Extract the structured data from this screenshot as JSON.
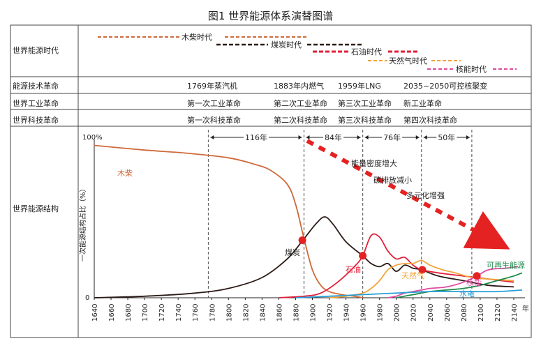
{
  "figure_title": "图1    世界能源体系演替图谱",
  "row_labels": {
    "era": "世界能源时代",
    "tech": "能源技术革命",
    "industry": "世界工业革命",
    "science": "世界科技革命",
    "structure": "世界能源结构"
  },
  "eras": [
    {
      "label": "木柴时代",
      "color": "#d0693a"
    },
    {
      "label": "煤炭时代",
      "color": "#2b1a16"
    },
    {
      "label": "石油时代",
      "color": "#e2203a"
    },
    {
      "label": "天然气时代",
      "color": "#f2a43a"
    },
    {
      "label": "核能时代",
      "color": "#e04aa0"
    }
  ],
  "tech_revolutions": [
    "1769年蒸汽机",
    "1883年内燃气",
    "1959年LNG",
    "2035~2050可控核聚变"
  ],
  "industrial_revolutions": [
    "第一次工业革命",
    "第二次工业革命",
    "第三次工业革命",
    "新工业革命"
  ],
  "sci_revolutions": [
    "第一次科技革命",
    "第二次科技革命",
    "第三次科技革命",
    "第四次科技革命"
  ],
  "chart_data": {
    "type": "line",
    "ylabel": "一次能源结构占比（%）",
    "y_tick_top": "100%",
    "y_tick_bottom": "0",
    "x_unit": "年",
    "x_ticks": [
      1640,
      1660,
      1680,
      1700,
      1720,
      1740,
      1760,
      1780,
      1800,
      1820,
      1840,
      1860,
      1880,
      1900,
      1920,
      1940,
      1960,
      1980,
      2000,
      2020,
      2040,
      2060,
      2080,
      2100,
      2120,
      2140
    ],
    "xlim": [
      1640,
      2150
    ],
    "ylim": [
      0,
      100
    ],
    "transitions": [
      1776,
      1890,
      1960,
      2030,
      2090
    ],
    "intervals": [
      "116年",
      "84年",
      "76年",
      "50年"
    ],
    "crossings": [
      {
        "x": 1888,
        "y": 37
      },
      {
        "x": 1960,
        "y": 27
      },
      {
        "x": 2031,
        "y": 18
      },
      {
        "x": 2096,
        "y": 14
      }
    ],
    "trend_annotations": [
      "能量密度增大",
      "碳排放减小",
      "多元化增强"
    ],
    "series": [
      {
        "name": "木柴",
        "color": "#d0693a",
        "x": [
          1640,
          1700,
          1750,
          1800,
          1830,
          1850,
          1870,
          1880,
          1890,
          1900,
          1910,
          1920,
          1935,
          1950,
          1960
        ],
        "y": [
          98,
          95,
          93,
          90,
          86,
          82,
          73,
          60,
          38,
          18,
          8,
          4,
          2,
          1,
          0
        ]
      },
      {
        "name": "煤炭",
        "color": "#2b1a16",
        "x": [
          1640,
          1700,
          1760,
          1800,
          1840,
          1870,
          1890,
          1905,
          1915,
          1925,
          1940,
          1960,
          1970,
          1980,
          1990,
          2000,
          2010,
          2020,
          2030,
          2050,
          2080,
          2110,
          2140
        ],
        "y": [
          0,
          1,
          3,
          6,
          13,
          25,
          38,
          48,
          52,
          47,
          36,
          27,
          22,
          20,
          22,
          17,
          21,
          19,
          18,
          14,
          11,
          8,
          7
        ]
      },
      {
        "name": "石油",
        "color": "#e2203a",
        "x": [
          1860,
          1890,
          1910,
          1930,
          1950,
          1960,
          1970,
          1980,
          1990,
          2000,
          2010,
          2020,
          2030,
          2050,
          2080,
          2110,
          2140
        ],
        "y": [
          0,
          1,
          3,
          10,
          20,
          27,
          40,
          39,
          30,
          25,
          26,
          21,
          18,
          16,
          14,
          12,
          10
        ]
      },
      {
        "name": "天然气",
        "color": "#f2a43a",
        "x": [
          1920,
          1940,
          1960,
          1970,
          1980,
          1990,
          2000,
          2010,
          2020,
          2030,
          2040,
          2055,
          2070,
          2090,
          2110,
          2140
        ],
        "y": [
          0,
          1,
          3,
          6,
          11,
          18,
          21,
          22,
          22,
          24,
          21,
          18,
          16,
          13,
          12,
          11
        ]
      },
      {
        "name": "核能",
        "color": "#e04aa0",
        "x": [
          1990,
          2000,
          2010,
          2020,
          2030,
          2040,
          2060,
          2080,
          2096,
          2110,
          2130,
          2145
        ],
        "y": [
          0,
          1,
          3,
          4,
          5,
          6,
          7,
          10,
          14,
          18,
          19,
          20
        ]
      },
      {
        "name": "可再生能源",
        "color": "#1e8a4a",
        "x": [
          2000,
          2020,
          2040,
          2060,
          2080,
          2100,
          2120,
          2140,
          2150
        ],
        "y": [
          0,
          2,
          4,
          5,
          6,
          8,
          11,
          14,
          16
        ]
      },
      {
        "name": "水电",
        "color": "#2a9fd6",
        "x": [
          1880,
          1920,
          1960,
          2000,
          2040,
          2080,
          2120,
          2150
        ],
        "y": [
          0,
          1,
          2,
          3,
          4,
          4,
          4,
          5
        ]
      }
    ]
  }
}
